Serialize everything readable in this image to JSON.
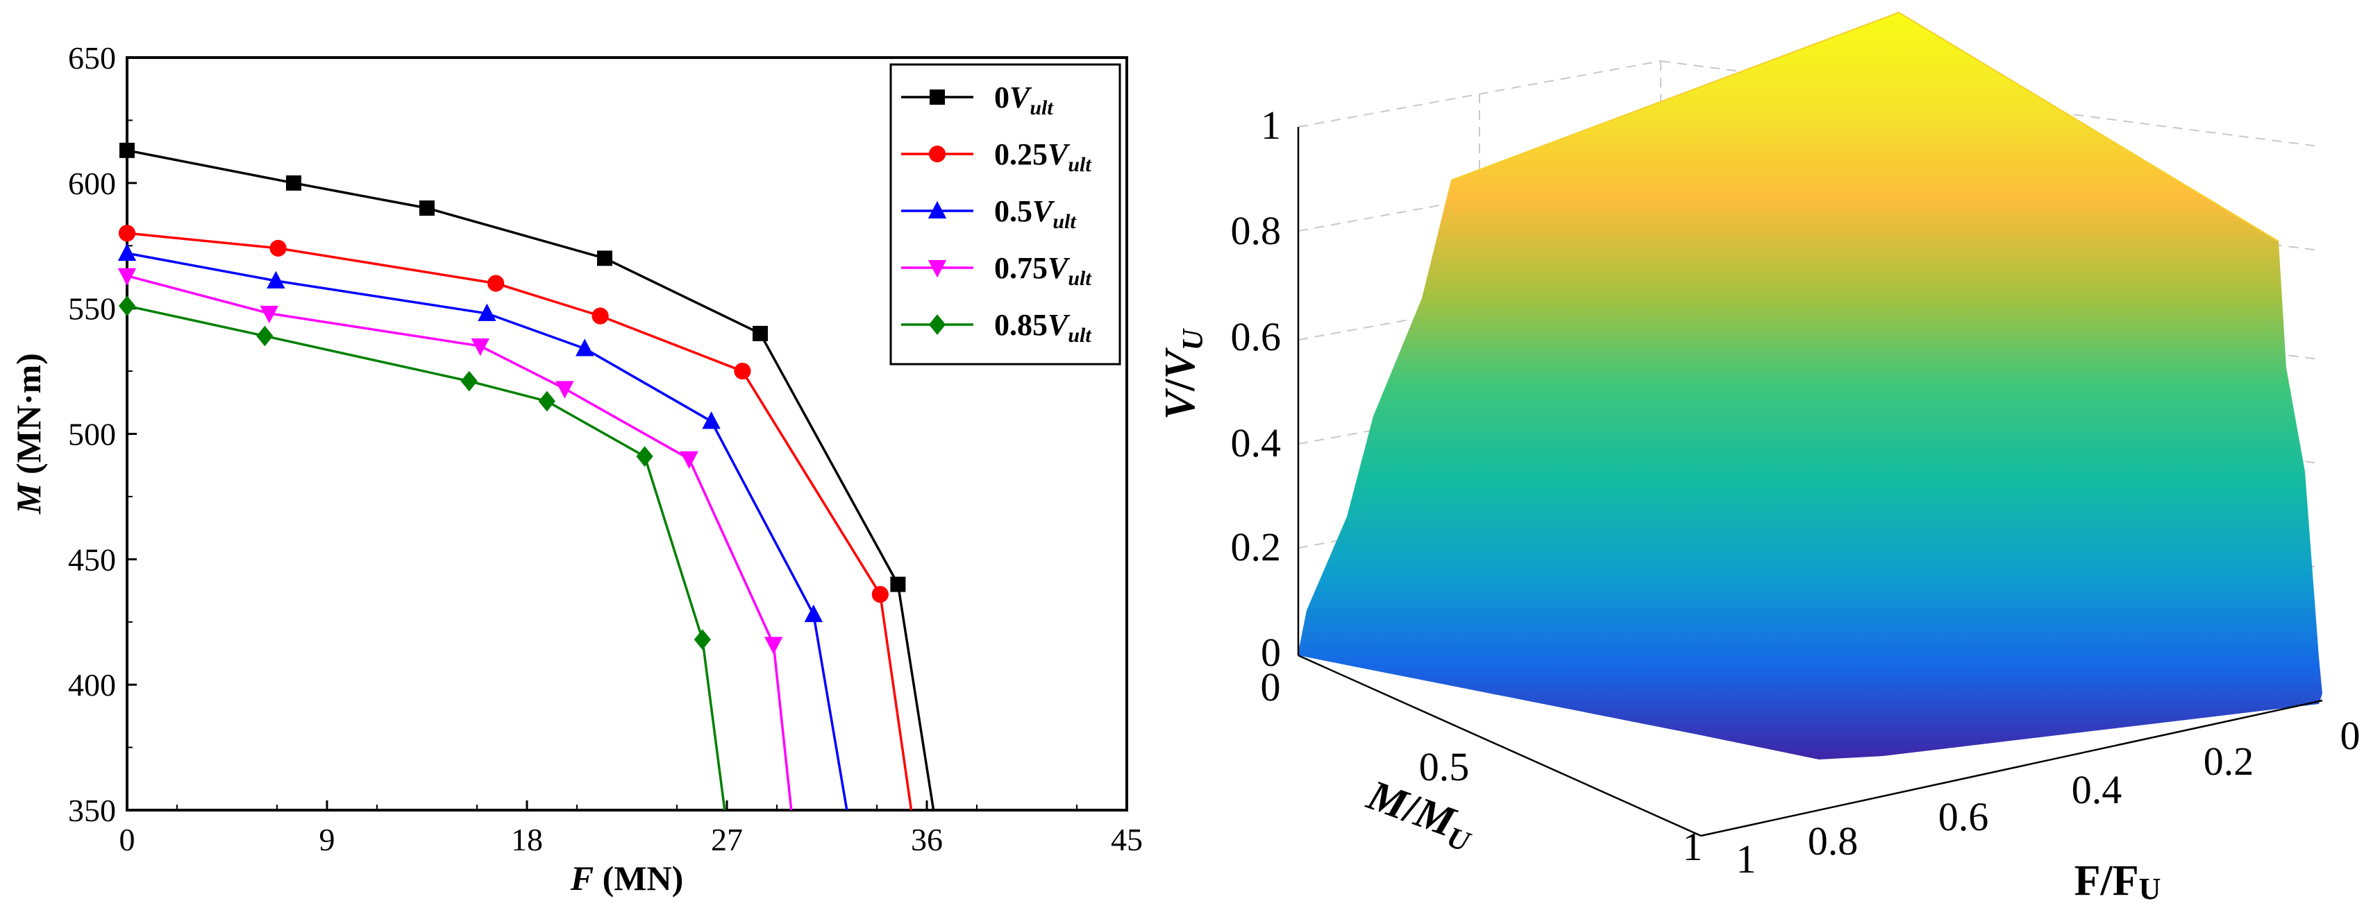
{
  "chart_data": [
    {
      "type": "line",
      "xlabel_var": "F",
      "xlabel_unit": " (MN)",
      "ylabel_var": "M",
      "ylabel_unit": " (MN·m)",
      "xlim": [
        0,
        45
      ],
      "ylim": [
        350,
        650
      ],
      "x_ticks": [
        "0",
        "9",
        "18",
        "27",
        "36",
        "45"
      ],
      "y_ticks": [
        "350",
        "400",
        "450",
        "500",
        "550",
        "600",
        "650"
      ],
      "grid": false,
      "legend_position": "top-right",
      "series": [
        {
          "name_prefix": "0",
          "name_var": "V",
          "name_sub": "ult",
          "color": "#000000",
          "marker": "square",
          "points": [
            [
              0,
              613
            ],
            [
              7.5,
              600
            ],
            [
              13.5,
              590
            ],
            [
              21.5,
              570
            ],
            [
              28.5,
              540
            ],
            [
              34.7,
              440
            ],
            [
              36.3,
              350
            ]
          ],
          "marked": [
            0,
            1,
            2,
            3,
            4,
            5
          ]
        },
        {
          "name_prefix": "0.25",
          "name_var": "V",
          "name_sub": "ult",
          "color": "#ff0000",
          "marker": "circle",
          "points": [
            [
              0,
              580
            ],
            [
              6.8,
              574
            ],
            [
              16.6,
              560
            ],
            [
              21.3,
              547
            ],
            [
              27.7,
              525
            ],
            [
              33.9,
              436
            ],
            [
              35.3,
              350
            ]
          ],
          "marked": [
            0,
            1,
            2,
            3,
            4,
            5
          ]
        },
        {
          "name_prefix": "0.5",
          "name_var": "V",
          "name_sub": "ult",
          "color": "#0000ff",
          "marker": "triangle-up",
          "points": [
            [
              0,
              572
            ],
            [
              6.7,
              561
            ],
            [
              16.2,
              548
            ],
            [
              20.6,
              534
            ],
            [
              26.3,
              505
            ],
            [
              30.9,
              428
            ],
            [
              32.4,
              350
            ]
          ],
          "marked": [
            0,
            1,
            2,
            3,
            4,
            5
          ]
        },
        {
          "name_prefix": "0.75",
          "name_var": "V",
          "name_sub": "ult",
          "color": "#ff00ff",
          "marker": "triangle-down",
          "points": [
            [
              0,
              563
            ],
            [
              6.4,
              548
            ],
            [
              15.9,
              535
            ],
            [
              19.7,
              518
            ],
            [
              25.3,
              490
            ],
            [
              29.1,
              416
            ],
            [
              29.9,
              350
            ]
          ],
          "marked": [
            0,
            1,
            2,
            3,
            4,
            5
          ]
        },
        {
          "name_prefix": "0.85",
          "name_var": "V",
          "name_sub": "ult",
          "color": "#008000",
          "marker": "diamond",
          "points": [
            [
              0,
              551
            ],
            [
              6.2,
              539
            ],
            [
              15.4,
              521
            ],
            [
              18.9,
              513
            ],
            [
              23.3,
              491
            ],
            [
              25.9,
              418
            ],
            [
              26.9,
              350
            ]
          ],
          "marked": [
            0,
            1,
            2,
            3,
            4,
            5
          ]
        }
      ]
    },
    {
      "type": "surface3d",
      "zlabel_var": "V",
      "zlabel_sep": "/",
      "zlabel_sub_var": "V",
      "zlabel_sub": "U",
      "ylabel_var": "M",
      "ylabel_sep": "/",
      "ylabel_sub_var": "M",
      "ylabel_sub": "U",
      "xlabel": "F/F",
      "xlabel_sub": "U",
      "z_ticks": [
        "0",
        "0.2",
        "0.4",
        "0.6",
        "0.8",
        "1"
      ],
      "m_ticks": [
        "0",
        "0.5",
        "1"
      ],
      "f_ticks": [
        "0",
        "0.2",
        "0.4",
        "0.6",
        "0.8",
        "1"
      ],
      "zlim": [
        0,
        1
      ],
      "colormap": [
        "#3e26a8",
        "#1668e6",
        "#0f9fcd",
        "#14bba0",
        "#3fc67c",
        "#a9c13f",
        "#fdbc3b",
        "#f5e52a",
        "#f9fb15"
      ]
    }
  ]
}
